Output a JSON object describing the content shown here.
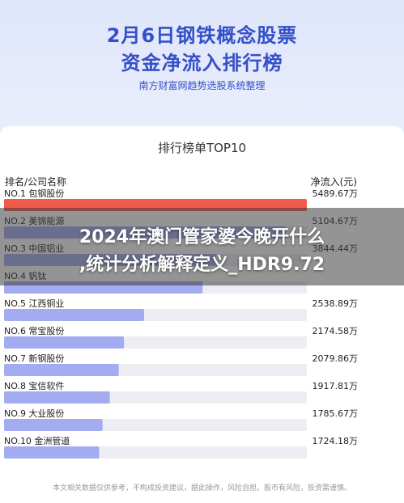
{
  "header": {
    "title_line1": "2月6日钢铁概念股票",
    "title_line2": "资金净流入排行榜",
    "subtitle": "南方财富网趋势选股系统整理"
  },
  "card": {
    "title": "排行榜单TOP10",
    "col_left": "排名/公司名称",
    "col_right": "净流入(元)"
  },
  "banner": {
    "line1": "2024年澳门管家婆今晚开什么",
    "line2": ",统计分析解释定义_HDR9.72"
  },
  "footer": "本文相关数据仅供参考，不构成投资建议，据此操作，风险自担。股市有风险，投资需谨慎。",
  "colors": {
    "top": "#f05a4a",
    "bar": "#a3acf0",
    "track": "#eceef3"
  },
  "chart_data": {
    "type": "bar",
    "orientation": "horizontal",
    "categories": [
      "NO.1 包钢股份",
      "NO.2 美锦能源",
      "NO.3 中国铝业",
      "NO.4 钒钛",
      "NO.5 江西铜业",
      "NO.6 常宝股份",
      "NO.7 新钢股份",
      "NO.8 宝信软件",
      "NO.9 大业股份",
      "NO.10 金洲管道"
    ],
    "values": [
      5489.67,
      5104.67,
      3844.44,
      3600,
      2538.89,
      2174.58,
      2079.86,
      1917.81,
      1785.67,
      1724.18
    ],
    "value_labels": [
      "5489.67万",
      "5104.67万",
      "3844.44万",
      "",
      "2538.89万",
      "2174.58万",
      "2079.86万",
      "1917.81万",
      "1785.67万",
      "1724.18万"
    ],
    "xlim": [
      0,
      5489.67
    ],
    "unit": "万"
  }
}
